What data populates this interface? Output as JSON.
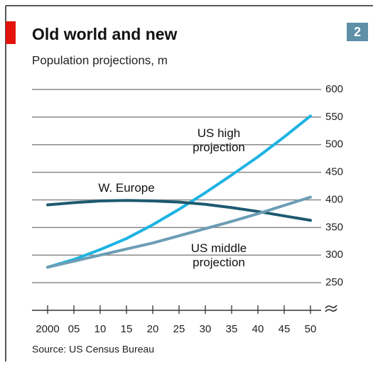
{
  "chart_data": {
    "type": "line",
    "title": "Old world and new",
    "subtitle": "Population projections, m",
    "badge": "2",
    "source": "Source: US Census Bureau",
    "x": [
      2000,
      2005,
      2010,
      2015,
      2020,
      2025,
      2030,
      2035,
      2040,
      2045,
      2050
    ],
    "series": [
      {
        "name": "US high projection",
        "color": "#1cb3e3",
        "values": [
          278,
          292,
          310,
          330,
          355,
          383,
          413,
          445,
          478,
          514,
          552
        ]
      },
      {
        "name": "W. Europe",
        "color": "#1d5a70",
        "values": [
          391,
          395,
          398,
          399,
          398,
          396,
          392,
          386,
          379,
          371,
          363
        ]
      },
      {
        "name": "US middle projection",
        "color": "#6c9db5",
        "values": [
          278,
          289,
          300,
          311,
          322,
          335,
          348,
          361,
          375,
          390,
          405
        ]
      }
    ],
    "xlim": [
      2000,
      2050
    ],
    "xticks": [
      2000,
      {
        "value": 2005,
        "label": "05"
      },
      {
        "value": 2010,
        "label": "10"
      },
      {
        "value": 2015,
        "label": "15"
      },
      {
        "value": 2020,
        "label": "20"
      },
      {
        "value": 2025,
        "label": "25"
      },
      {
        "value": 2030,
        "label": "30"
      },
      {
        "value": 2035,
        "label": "35"
      },
      {
        "value": 2040,
        "label": "40"
      },
      {
        "value": 2045,
        "label": "45"
      },
      {
        "value": 2050,
        "label": "50"
      }
    ],
    "ylim": [
      200,
      600
    ],
    "yticks": [
      250,
      300,
      350,
      400,
      450,
      500,
      550,
      600
    ],
    "grid": true
  }
}
